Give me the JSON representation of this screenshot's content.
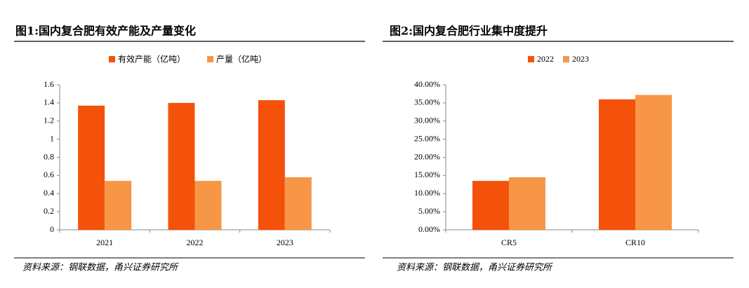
{
  "chart_data": [
    {
      "type": "bar",
      "title": "图1:国内复合肥有效产能及产量变化",
      "categories": [
        "2021",
        "2022",
        "2023"
      ],
      "series": [
        {
          "name": "有效产能（亿吨）",
          "color": "#f4520b",
          "values": [
            1.37,
            1.4,
            1.43
          ]
        },
        {
          "name": "产量（亿吨）",
          "color": "#f79646",
          "values": [
            0.54,
            0.54,
            0.58
          ]
        }
      ],
      "ylim": [
        0,
        1.6
      ],
      "yticks": [
        0,
        0.2,
        0.4,
        0.6,
        0.8,
        1,
        1.2,
        1.4,
        1.6
      ],
      "source": "资料来源：钢联数据，甬兴证券研究所"
    },
    {
      "type": "bar",
      "title": "图2:国内复合肥行业集中度提升",
      "categories": [
        "CR5",
        "CR10"
      ],
      "series": [
        {
          "name": "2022",
          "color": "#f4520b",
          "values": [
            13.5,
            36
          ]
        },
        {
          "name": "2023",
          "color": "#f79646",
          "values": [
            14.5,
            37.2
          ]
        }
      ],
      "ylim": [
        0,
        40
      ],
      "yticks": [
        {
          "value": 0,
          "label": "0.00%"
        },
        {
          "value": 5,
          "label": "5.00%"
        },
        {
          "value": 10,
          "label": "10.00%"
        },
        {
          "value": 15,
          "label": "15.00%"
        },
        {
          "value": 20,
          "label": "20.00%"
        },
        {
          "value": 25,
          "label": "25.00%"
        },
        {
          "value": 30,
          "label": "30.00%"
        },
        {
          "value": 35,
          "label": "35.00%"
        },
        {
          "value": 40,
          "label": "40.00%"
        }
      ],
      "source": "资料来源：钢联数据，甬兴证券研究所"
    }
  ]
}
